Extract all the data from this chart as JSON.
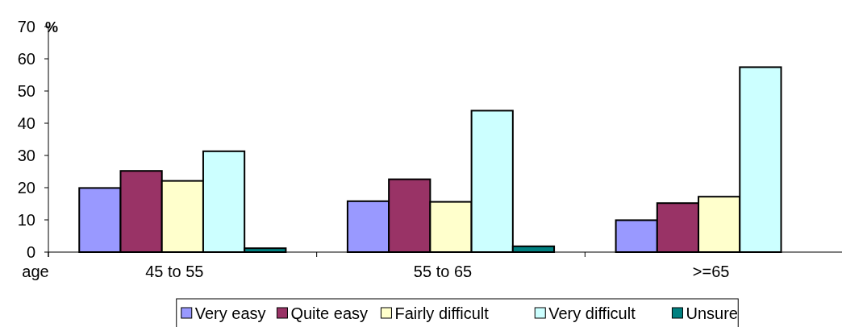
{
  "chart_data": {
    "type": "bar",
    "xlabel": "age",
    "ylabel": "%",
    "categories": [
      "45 to 55",
      "55 to 65",
      ">=65"
    ],
    "series": [
      {
        "name": "Very easy",
        "color": "#9999ff",
        "values": [
          19.9,
          15.8,
          9.9
        ]
      },
      {
        "name": "Quite easy",
        "color": "#993366",
        "values": [
          25.2,
          22.6,
          15.2
        ]
      },
      {
        "name": "Fairly difficult",
        "color": "#ffffcc",
        "values": [
          22.1,
          15.6,
          17.2
        ]
      },
      {
        "name": "Very difficult",
        "color": "#ccffff",
        "values": [
          31.3,
          43.9,
          57.4
        ]
      },
      {
        "name": "Unsure",
        "color": "#008080",
        "values": [
          1.2,
          1.8,
          null
        ]
      }
    ],
    "ylim": [
      0,
      70
    ],
    "yticks": [
      0,
      10,
      20,
      30,
      40,
      50,
      60,
      70
    ],
    "grid": false,
    "legend": "bottom"
  }
}
